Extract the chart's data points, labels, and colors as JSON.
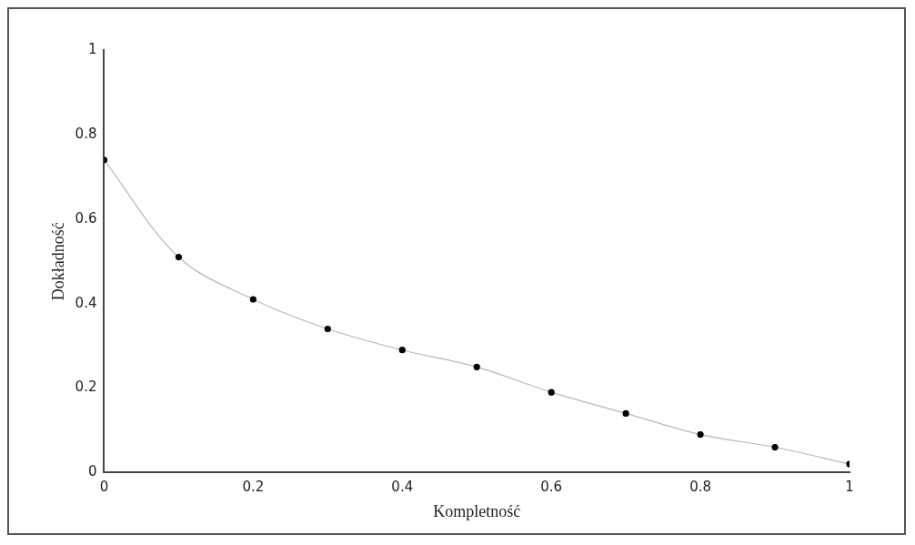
{
  "chart_data": {
    "type": "line",
    "xlabel": "Kompletność",
    "ylabel": "Dokładność",
    "x": [
      0,
      0.1,
      0.2,
      0.3,
      0.4,
      0.5,
      0.6,
      0.7,
      0.8,
      0.9,
      1
    ],
    "series": [
      {
        "color": "#000000",
        "values": [
          0.74,
          0.51,
          0.41,
          0.34,
          0.29,
          0.25,
          0.19,
          0.14,
          0.09,
          0.06,
          0.02
        ]
      }
    ],
    "xlim": [
      0,
      1
    ],
    "xticks": [
      0,
      0.2,
      0.4,
      0.6,
      0.8,
      1
    ],
    "ylim": [
      0,
      1
    ],
    "yticks": [
      0,
      0.2,
      0.4,
      0.6,
      0.8,
      1
    ],
    "grid": false,
    "legend": false,
    "marker": "circle",
    "line_style": "solid"
  }
}
